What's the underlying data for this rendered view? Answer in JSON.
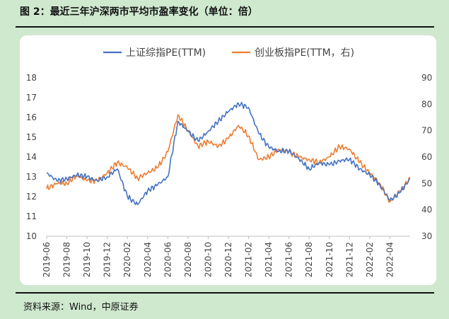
{
  "figure": {
    "title": "图 2：最近三年沪深两市平均市盈率变化（单位：倍）",
    "source": "资料来源：Wind，中原证券"
  },
  "chart_data": {
    "type": "line",
    "left_axis": {
      "min": 10,
      "max": 18,
      "ticks": [
        "10",
        "11",
        "12",
        "13",
        "14",
        "15",
        "16",
        "17",
        "18"
      ]
    },
    "right_axis": {
      "min": 30,
      "max": 90,
      "ticks": [
        "30",
        "40",
        "50",
        "60",
        "70",
        "80",
        "90"
      ]
    },
    "x_tick_labels": [
      "2019-06",
      "2019-08",
      "2019-10",
      "2019-12",
      "2020-02",
      "2020-04",
      "2020-06",
      "2020-08",
      "2020-10",
      "2020-12",
      "2021-02",
      "2021-04",
      "2021-06",
      "2021-08",
      "2021-10",
      "2021-12",
      "2022-02",
      "2022-04"
    ],
    "x_range": [
      "2019-06",
      "2022-06"
    ],
    "legend_position": "top",
    "grid": false,
    "series": [
      {
        "name": "上证综指PE(TTM)",
        "axis": "left",
        "color": "#4472c4",
        "points": [
          [
            "2019-06",
            13.2
          ],
          [
            "2019-07",
            12.8
          ],
          [
            "2019-08",
            12.9
          ],
          [
            "2019-09",
            13.1
          ],
          [
            "2019-10",
            13.0
          ],
          [
            "2019-11",
            12.8
          ],
          [
            "2019-12",
            13.0
          ],
          [
            "2020-01",
            13.4
          ],
          [
            "2020-02",
            12.0
          ],
          [
            "2020-03",
            11.6
          ],
          [
            "2020-04",
            12.3
          ],
          [
            "2020-05",
            12.6
          ],
          [
            "2020-06",
            13.0
          ],
          [
            "2020-07",
            15.8
          ],
          [
            "2020-08",
            15.3
          ],
          [
            "2020-09",
            14.8
          ],
          [
            "2020-10",
            15.3
          ],
          [
            "2020-11",
            15.8
          ],
          [
            "2020-12",
            16.3
          ],
          [
            "2021-01",
            16.7
          ],
          [
            "2021-02",
            16.5
          ],
          [
            "2021-03",
            15.2
          ],
          [
            "2021-04",
            14.5
          ],
          [
            "2021-05",
            14.3
          ],
          [
            "2021-06",
            14.3
          ],
          [
            "2021-07",
            13.9
          ],
          [
            "2021-08",
            13.4
          ],
          [
            "2021-09",
            13.7
          ],
          [
            "2021-10",
            13.6
          ],
          [
            "2021-11",
            13.8
          ],
          [
            "2021-12",
            13.9
          ],
          [
            "2022-01",
            13.4
          ],
          [
            "2022-02",
            13.1
          ],
          [
            "2022-03",
            12.6
          ],
          [
            "2022-04",
            11.8
          ],
          [
            "2022-05",
            12.2
          ],
          [
            "2022-06",
            12.9
          ]
        ]
      },
      {
        "name": "创业板指PE(TTM，右)",
        "axis": "right",
        "color": "#ed7d31",
        "points": [
          [
            "2019-06",
            48
          ],
          [
            "2019-07",
            50
          ],
          [
            "2019-08",
            50
          ],
          [
            "2019-09",
            53
          ],
          [
            "2019-10",
            51
          ],
          [
            "2019-11",
            51
          ],
          [
            "2019-12",
            54
          ],
          [
            "2020-01",
            58
          ],
          [
            "2020-02",
            56
          ],
          [
            "2020-03",
            52
          ],
          [
            "2020-04",
            54
          ],
          [
            "2020-05",
            56
          ],
          [
            "2020-06",
            62
          ],
          [
            "2020-07",
            76
          ],
          [
            "2020-08",
            70
          ],
          [
            "2020-09",
            64
          ],
          [
            "2020-10",
            66
          ],
          [
            "2020-11",
            64
          ],
          [
            "2020-12",
            67
          ],
          [
            "2021-01",
            72
          ],
          [
            "2021-02",
            68
          ],
          [
            "2021-03",
            59
          ],
          [
            "2021-04",
            60
          ],
          [
            "2021-05",
            63
          ],
          [
            "2021-06",
            62
          ],
          [
            "2021-07",
            60
          ],
          [
            "2021-08",
            59
          ],
          [
            "2021-09",
            58
          ],
          [
            "2021-10",
            60
          ],
          [
            "2021-11",
            64
          ],
          [
            "2021-12",
            63
          ],
          [
            "2022-01",
            58
          ],
          [
            "2022-02",
            54
          ],
          [
            "2022-03",
            50
          ],
          [
            "2022-04",
            43
          ],
          [
            "2022-05",
            47
          ],
          [
            "2022-06",
            52
          ]
        ]
      }
    ]
  }
}
